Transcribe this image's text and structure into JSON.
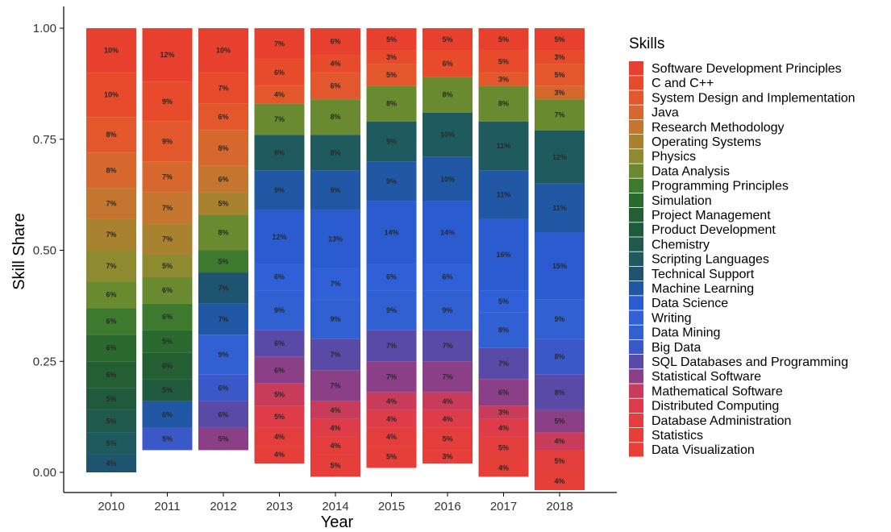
{
  "chart_data": {
    "type": "bar",
    "stacked": true,
    "xlabel": "Year",
    "ylabel": "Skill Share",
    "ylim": [
      0,
      1
    ],
    "y_ticks": [
      "0.00",
      "0.25",
      "0.50",
      "0.75",
      "1.00"
    ],
    "categories": [
      "2010",
      "2011",
      "2012",
      "2013",
      "2014",
      "2015",
      "2016",
      "2017",
      "2018"
    ],
    "legend_title": "Skills",
    "legend_position": "right",
    "grid": false,
    "series": [
      {
        "name": "Software Development Principles",
        "color": "#e8402e",
        "values": [
          0.1,
          0.12,
          0.1,
          0.07,
          0.06,
          0.05,
          0.05,
          0.05,
          0.05
        ]
      },
      {
        "name": "C and C++",
        "color": "#e84b2c",
        "values": [
          0.1,
          0.09,
          0.07,
          0.06,
          0.04,
          0.03,
          0.06,
          0.05,
          0.03
        ]
      },
      {
        "name": "System Design and Implementation",
        "color": "#e2572c",
        "values": [
          0.08,
          0.09,
          0.06,
          0.04,
          0.06,
          0.05,
          0.0,
          0.03,
          0.05
        ]
      },
      {
        "name": "Java",
        "color": "#d6682e",
        "values": [
          0.08,
          0.07,
          0.08,
          0.0,
          0.0,
          0.0,
          0.0,
          0.0,
          0.03
        ]
      },
      {
        "name": "Research Methodology",
        "color": "#c4762f",
        "values": [
          0.07,
          0.07,
          0.06,
          0.0,
          0.0,
          0.0,
          0.0,
          0.0,
          0.0
        ]
      },
      {
        "name": "Operating Systems",
        "color": "#a8822f",
        "values": [
          0.07,
          0.07,
          0.05,
          0.0,
          0.0,
          0.0,
          0.0,
          0.0,
          0.0
        ]
      },
      {
        "name": "Physics",
        "color": "#8e8a30",
        "values": [
          0.07,
          0.05,
          0.0,
          0.0,
          0.0,
          0.0,
          0.0,
          0.0,
          0.0
        ]
      },
      {
        "name": "Data Analysis",
        "color": "#6a8a2f",
        "values": [
          0.06,
          0.06,
          0.08,
          0.07,
          0.08,
          0.08,
          0.08,
          0.08,
          0.07
        ]
      },
      {
        "name": "Programming Principles",
        "color": "#3d7a2e",
        "values": [
          0.06,
          0.06,
          0.05,
          0.0,
          0.0,
          0.0,
          0.0,
          0.0,
          0.0
        ]
      },
      {
        "name": "Simulation",
        "color": "#2a6a2e",
        "values": [
          0.06,
          0.05,
          0.0,
          0.0,
          0.0,
          0.0,
          0.0,
          0.0,
          0.0
        ]
      },
      {
        "name": "Project Management",
        "color": "#235f33",
        "values": [
          0.06,
          0.06,
          0.0,
          0.0,
          0.0,
          0.0,
          0.0,
          0.0,
          0.0
        ]
      },
      {
        "name": "Product Development",
        "color": "#1f5a3d",
        "values": [
          0.05,
          0.05,
          0.0,
          0.0,
          0.0,
          0.0,
          0.0,
          0.0,
          0.0
        ]
      },
      {
        "name": "Chemistry",
        "color": "#1f5a4c",
        "values": [
          0.05,
          0.0,
          0.0,
          0.0,
          0.0,
          0.0,
          0.0,
          0.0,
          0.0
        ]
      },
      {
        "name": "Scripting Languages",
        "color": "#1e5a5e",
        "values": [
          0.05,
          0.0,
          0.0,
          0.08,
          0.08,
          0.09,
          0.1,
          0.11,
          0.12
        ]
      },
      {
        "name": "Technical Support",
        "color": "#1f5470",
        "values": [
          0.04,
          0.0,
          0.07,
          0.0,
          0.0,
          0.0,
          0.0,
          0.0,
          0.0
        ]
      },
      {
        "name": "Machine Learning",
        "color": "#2158a6",
        "values": [
          0.0,
          0.06,
          0.07,
          0.09,
          0.09,
          0.09,
          0.1,
          0.11,
          0.11
        ]
      },
      {
        "name": "Data Science",
        "color": "#2a5cd0",
        "values": [
          0.0,
          0.0,
          0.0,
          0.12,
          0.13,
          0.14,
          0.14,
          0.16,
          0.15
        ]
      },
      {
        "name": "Writing",
        "color": "#2f60d8",
        "values": [
          0.0,
          0.0,
          0.0,
          0.06,
          0.07,
          0.06,
          0.06,
          0.05,
          0.0
        ]
      },
      {
        "name": "Data Mining",
        "color": "#3060d2",
        "values": [
          0.0,
          0.0,
          0.09,
          0.09,
          0.09,
          0.09,
          0.09,
          0.08,
          0.09
        ]
      },
      {
        "name": "Big Data",
        "color": "#3a58c8",
        "values": [
          0.0,
          0.05,
          0.06,
          0.0,
          0.0,
          0.0,
          0.0,
          0.0,
          0.08
        ]
      },
      {
        "name": "SQL Databases and Programming",
        "color": "#5a4aa8",
        "values": [
          0.0,
          0.0,
          0.06,
          0.06,
          0.07,
          0.07,
          0.07,
          0.07,
          0.08
        ]
      },
      {
        "name": "Statistical Software",
        "color": "#8a3f86",
        "values": [
          0.0,
          0.0,
          0.05,
          0.06,
          0.07,
          0.07,
          0.07,
          0.06,
          0.05
        ]
      },
      {
        "name": "Mathematical Software",
        "color": "#c83b5a",
        "values": [
          0.0,
          0.0,
          0.0,
          0.05,
          0.04,
          0.04,
          0.04,
          0.03,
          0.04
        ]
      },
      {
        "name": "Distributed Computing",
        "color": "#de3c48",
        "values": [
          0.0,
          0.0,
          0.0,
          0.05,
          0.04,
          0.04,
          0.04,
          0.04,
          0.0
        ]
      },
      {
        "name": "Database Administration",
        "color": "#e33e3c",
        "values": [
          0.0,
          0.0,
          0.0,
          0.04,
          0.04,
          0.04,
          0.05,
          0.05,
          0.05
        ]
      },
      {
        "name": "Statistics",
        "color": "#e63e38",
        "values": [
          0.0,
          0.0,
          0.0,
          0.04,
          0.05,
          0.05,
          0.03,
          0.04,
          0.04
        ]
      },
      {
        "name": "Data Visualization",
        "color": "#e84036",
        "values": [
          0.0,
          0.0,
          0.0,
          0.0,
          0.0,
          0.0,
          0.0,
          0.0,
          0.0
        ]
      }
    ]
  }
}
